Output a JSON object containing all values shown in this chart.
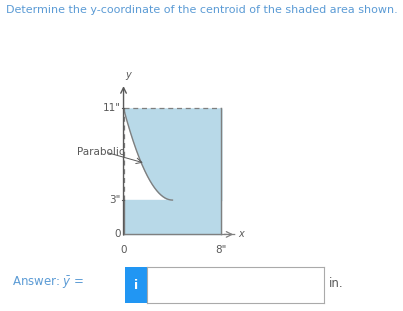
{
  "title": "Determine the y-coordinate of the centroid of the shaded area shown.",
  "title_color": "#5b9bd5",
  "y_label_11": "11\"",
  "y_label_3": "3\"",
  "x_label_8": "8\"",
  "x_label_0": "0",
  "y_label_0": "0",
  "parabola_label": "Parabolic",
  "answer_text": "Answer: ",
  "answer_unit": "in.",
  "shaded_color": "#b8d9e8",
  "curve_color": "#7f7f7f",
  "axis_color": "#595959",
  "dashed_color": "#7f7f7f",
  "text_color": "#595959",
  "y_max": 11,
  "y_min": 3,
  "x_max": 8,
  "fig_width": 4.03,
  "fig_height": 3.11,
  "bg_color": "#ffffff",
  "btn_color": "#2196f3"
}
